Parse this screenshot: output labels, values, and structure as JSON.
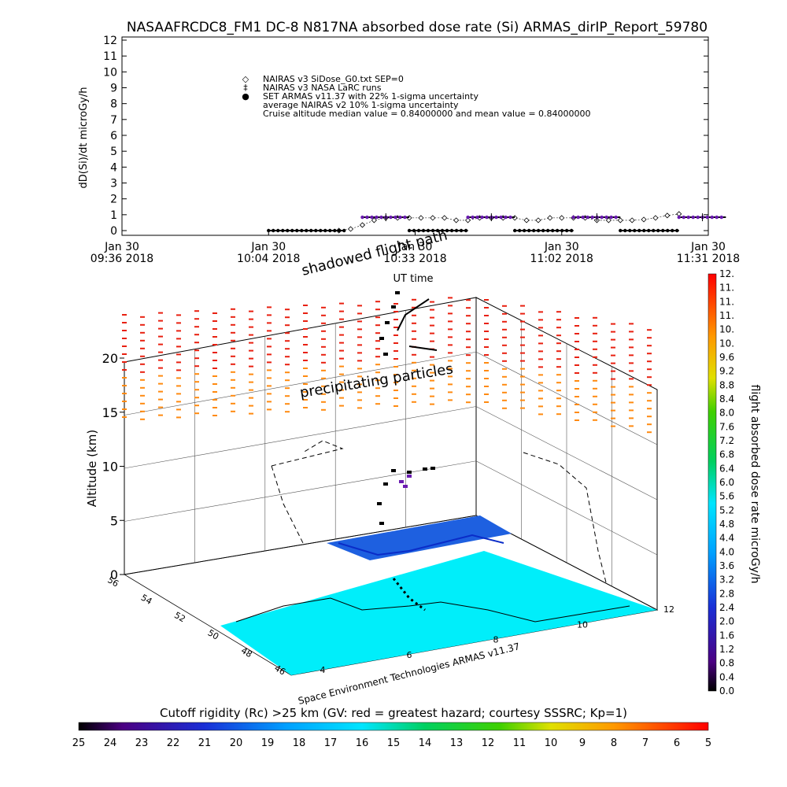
{
  "title": "NASAAFRCDC8_FM1 DC-8   N817NA absorbed dose rate (Si) ARMAS_dirIP_Report_59780",
  "chart_data": [
    {
      "type": "line",
      "ylabel": "dD(Si)/dt microGy/h",
      "xlabel": "UT time",
      "ylim": [
        0,
        12
      ],
      "yticks": [
        "0",
        "1",
        "2",
        "3",
        "4",
        "5",
        "6",
        "7",
        "8",
        "9",
        "10",
        "11",
        "12"
      ],
      "xticks": [
        {
          "l1": "Jan 30",
          "l2": "09:36 2018"
        },
        {
          "l1": "Jan 30",
          "l2": "10:04 2018"
        },
        {
          "l1": "Jan 30",
          "l2": "10:33 2018"
        },
        {
          "l1": "Jan 30",
          "l2": "11:02 2018"
        },
        {
          "l1": "Jan 30",
          "l2": "11:31 2018"
        }
      ],
      "legend": [
        {
          "symbol": "◇",
          "text": "NAIRAS v3 SiDose_G0.txt SEP=0",
          "color": "#000000"
        },
        {
          "symbol": "‡",
          "text": "NAIRAS v3 NASA LaRC runs",
          "color": "#000000"
        },
        {
          "symbol": "●",
          "text": "SET ARMAS v11.37 with 22% 1-sigma uncertainty",
          "color": "#1f3fd6"
        },
        {
          "symbol": "",
          "text": "average NAIRAS v2 10% 1-sigma uncertainty",
          "color": "#000000"
        },
        {
          "symbol": "",
          "text": "Cruise altitude median value = 0.84000000 and mean value = 0.84000000",
          "color": "#000000"
        }
      ],
      "series": [
        {
          "name": "NAIRAS v3 SiDose_G0.txt SEP=0",
          "x": [
            0.37,
            0.39,
            0.41,
            0.43,
            0.45,
            0.47,
            0.49,
            0.51,
            0.53,
            0.55,
            0.57,
            0.59,
            0.61,
            0.63,
            0.65,
            0.67,
            0.69,
            0.71,
            0.73,
            0.75,
            0.77,
            0.79,
            0.81,
            0.83,
            0.85,
            0.87,
            0.89,
            0.91,
            0.93,
            0.95
          ],
          "values": [
            0.0,
            0.1,
            0.35,
            0.65,
            0.8,
            0.8,
            0.8,
            0.8,
            0.8,
            0.8,
            0.65,
            0.65,
            0.8,
            0.8,
            0.8,
            0.8,
            0.65,
            0.65,
            0.8,
            0.8,
            0.8,
            0.8,
            0.65,
            0.65,
            0.65,
            0.65,
            0.7,
            0.8,
            0.95,
            1.05
          ]
        },
        {
          "name": "SET ARMAS v11.37",
          "segments": [
            {
              "x": [
                0.25,
                0.38
              ],
              "y": 0.0
            },
            {
              "x": [
                0.41,
                0.49
              ],
              "y": 0.84
            },
            {
              "x": [
                0.49,
                0.59
              ],
              "y": 0.0
            },
            {
              "x": [
                0.59,
                0.67
              ],
              "y": 0.84
            },
            {
              "x": [
                0.67,
                0.77
              ],
              "y": 0.0
            },
            {
              "x": [
                0.77,
                0.85
              ],
              "y": 0.84
            },
            {
              "x": [
                0.85,
                0.95
              ],
              "y": 0.0
            },
            {
              "x": [
                0.95,
                1.03
              ],
              "y": 0.84
            }
          ]
        }
      ]
    },
    {
      "type": "3d-scene",
      "zlabel": "Altitude (km)",
      "zlim": [
        0,
        20
      ],
      "zticks": [
        "0",
        "5",
        "10",
        "15",
        "20"
      ],
      "lat_ticks": [
        "56",
        "54",
        "52",
        "50",
        "48",
        "46"
      ],
      "lon_ticks": [
        "4",
        "6",
        "8",
        "10",
        "12"
      ],
      "annotations": [
        "shadowed flight path",
        "precipitating particles"
      ],
      "credit": "Space Environment Technologies ARMAS v11.37"
    },
    {
      "type": "colorbar",
      "label": "flight absorbed dose rate microGy/h",
      "ticks": [
        "0.0",
        "0.4",
        "0.8",
        "1.2",
        "1.6",
        "2.0",
        "2.4",
        "2.8",
        "3.2",
        "3.6",
        "4.0",
        "4.4",
        "4.8",
        "5.2",
        "5.6",
        "6.0",
        "6.4",
        "6.8",
        "7.2",
        "7.6",
        "8.0",
        "8.4",
        "8.8",
        "9.2",
        "9.6",
        "10.",
        "10.",
        "11.",
        "11.",
        "11.",
        "12."
      ],
      "range": [
        0,
        12
      ]
    },
    {
      "type": "colorbar",
      "label": "Cutoff rigidity (Rc) >25 km (GV: red = greatest hazard; courtesy SSSRC; Kp=1)",
      "ticks": [
        "25",
        "24",
        "23",
        "22",
        "21",
        "20",
        "19",
        "18",
        "17",
        "16",
        "15",
        "14",
        "13",
        "12",
        "11",
        "10",
        "9",
        "8",
        "7",
        "6",
        "5"
      ],
      "range": [
        25,
        5
      ]
    }
  ]
}
